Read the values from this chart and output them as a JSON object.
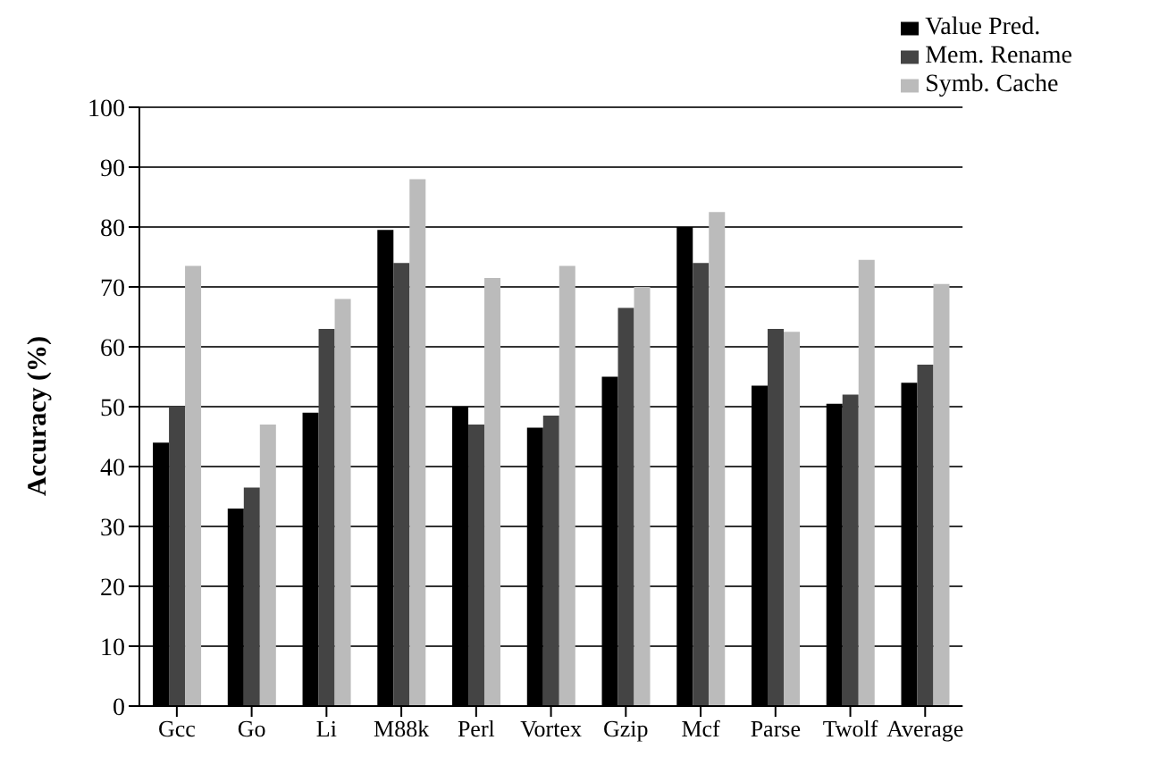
{
  "chart_data": {
    "type": "bar",
    "ylabel": "Accuracy (%)",
    "categories": [
      "Gcc",
      "Go",
      "Li",
      "M88k",
      "Perl",
      "Vortex",
      "Gzip",
      "Mcf",
      "Parse",
      "Twolf",
      "Average"
    ],
    "series": [
      {
        "name": "Value Pred.",
        "color": "#000000",
        "values": [
          44,
          33,
          49,
          79.5,
          50,
          46.5,
          55,
          80,
          53.5,
          50.5,
          54
        ]
      },
      {
        "name": "Mem. Rename",
        "color": "#444444",
        "values": [
          50,
          36.5,
          63,
          74,
          47,
          48.5,
          66.5,
          74,
          63,
          52,
          57
        ]
      },
      {
        "name": "Symb. Cache",
        "color": "#bbbbbb",
        "values": [
          73.5,
          47,
          68,
          88,
          71.5,
          73.5,
          70,
          82.5,
          62.5,
          74.5,
          70.5
        ]
      }
    ],
    "ylim": [
      0,
      100
    ],
    "yticks": [
      0,
      10,
      20,
      30,
      40,
      50,
      60,
      70,
      80,
      90,
      100
    ],
    "grid": "y",
    "legend": "top right"
  }
}
